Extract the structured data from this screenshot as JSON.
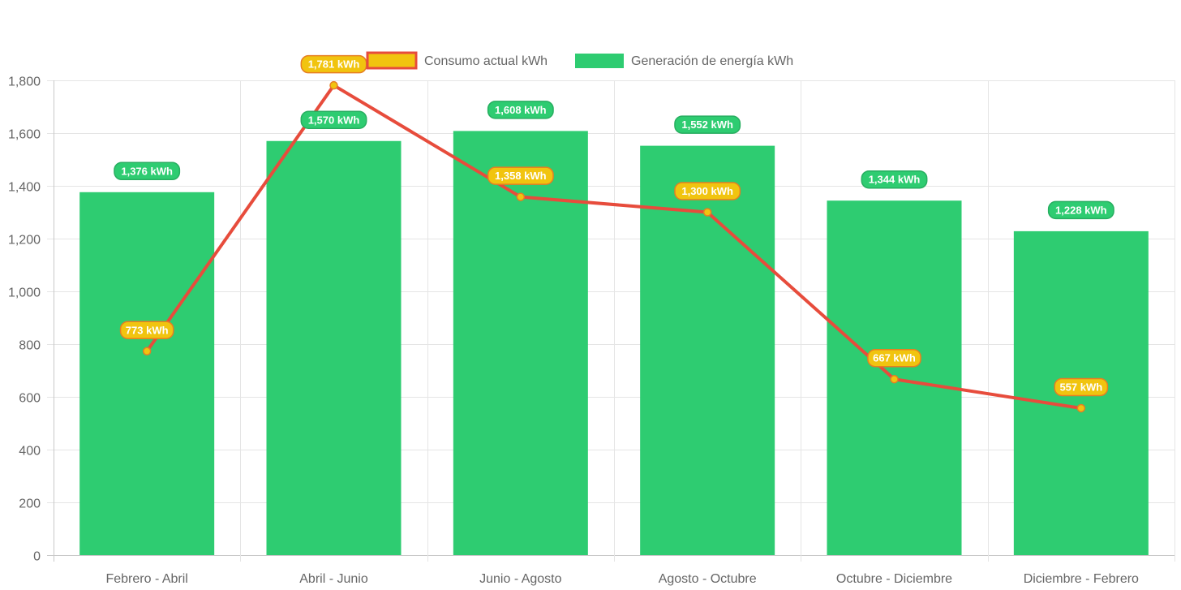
{
  "chart_data": {
    "type": "bar",
    "categories": [
      "Febrero - Abril",
      "Abril - Junio",
      "Junio - Agosto",
      "Agosto - Octubre",
      "Octubre - Diciembre",
      "Diciembre - Febrero"
    ],
    "ylim": [
      0,
      1800
    ],
    "yticks": [
      0,
      200,
      400,
      600,
      800,
      1000,
      1200,
      1400,
      1600,
      1800
    ],
    "ytick_labels": [
      "0",
      "200",
      "400",
      "600",
      "800",
      "1,000",
      "1,200",
      "1,400",
      "1,600",
      "1,800"
    ],
    "grid": true,
    "legend_position": "top-center",
    "series": [
      {
        "name": "Consumo actual kWh",
        "type": "line",
        "values": [
          773,
          1781,
          1358,
          1300,
          667,
          557
        ],
        "data_labels": [
          "773 kWh",
          "1,781 kWh",
          "1,358 kWh",
          "1,300 kWh",
          "667 kWh",
          "557 kWh"
        ],
        "color": "#e74c3c",
        "point_color": "#f1c40f",
        "label_color": "#f1c40f"
      },
      {
        "name": "Generación de energía kWh",
        "type": "bar",
        "values": [
          1376,
          1570,
          1608,
          1552,
          1344,
          1228
        ],
        "data_labels": [
          "1,376 kWh",
          "1,570 kWh",
          "1,608 kWh",
          "1,552 kWh",
          "1,344 kWh",
          "1,228 kWh"
        ],
        "color": "#2ecc71",
        "label_color": "#2ecc71"
      }
    ]
  }
}
